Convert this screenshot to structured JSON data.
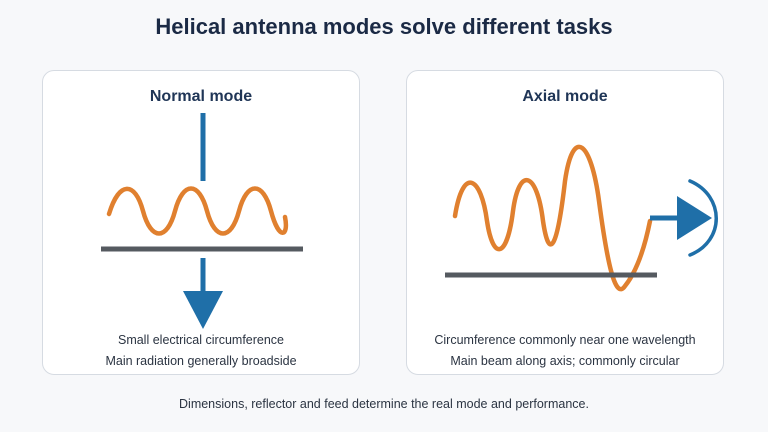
{
  "title": "Helical antenna modes solve different tasks",
  "panels": [
    {
      "title": "Normal mode",
      "caption_1": "Small electrical circumference",
      "caption_2": "Main radiation generally broadside"
    },
    {
      "title": "Axial mode",
      "caption_1": "Circumference commonly near one wavelength",
      "caption_2": "Main beam along axis; commonly circular"
    }
  ],
  "footer": "Dimensions, reflector and feed determine the real mode and performance.",
  "colors": {
    "helix": "#e0802f",
    "beam": "#1f6fa8",
    "ground": "#555a60",
    "title": "#1b2a45"
  }
}
